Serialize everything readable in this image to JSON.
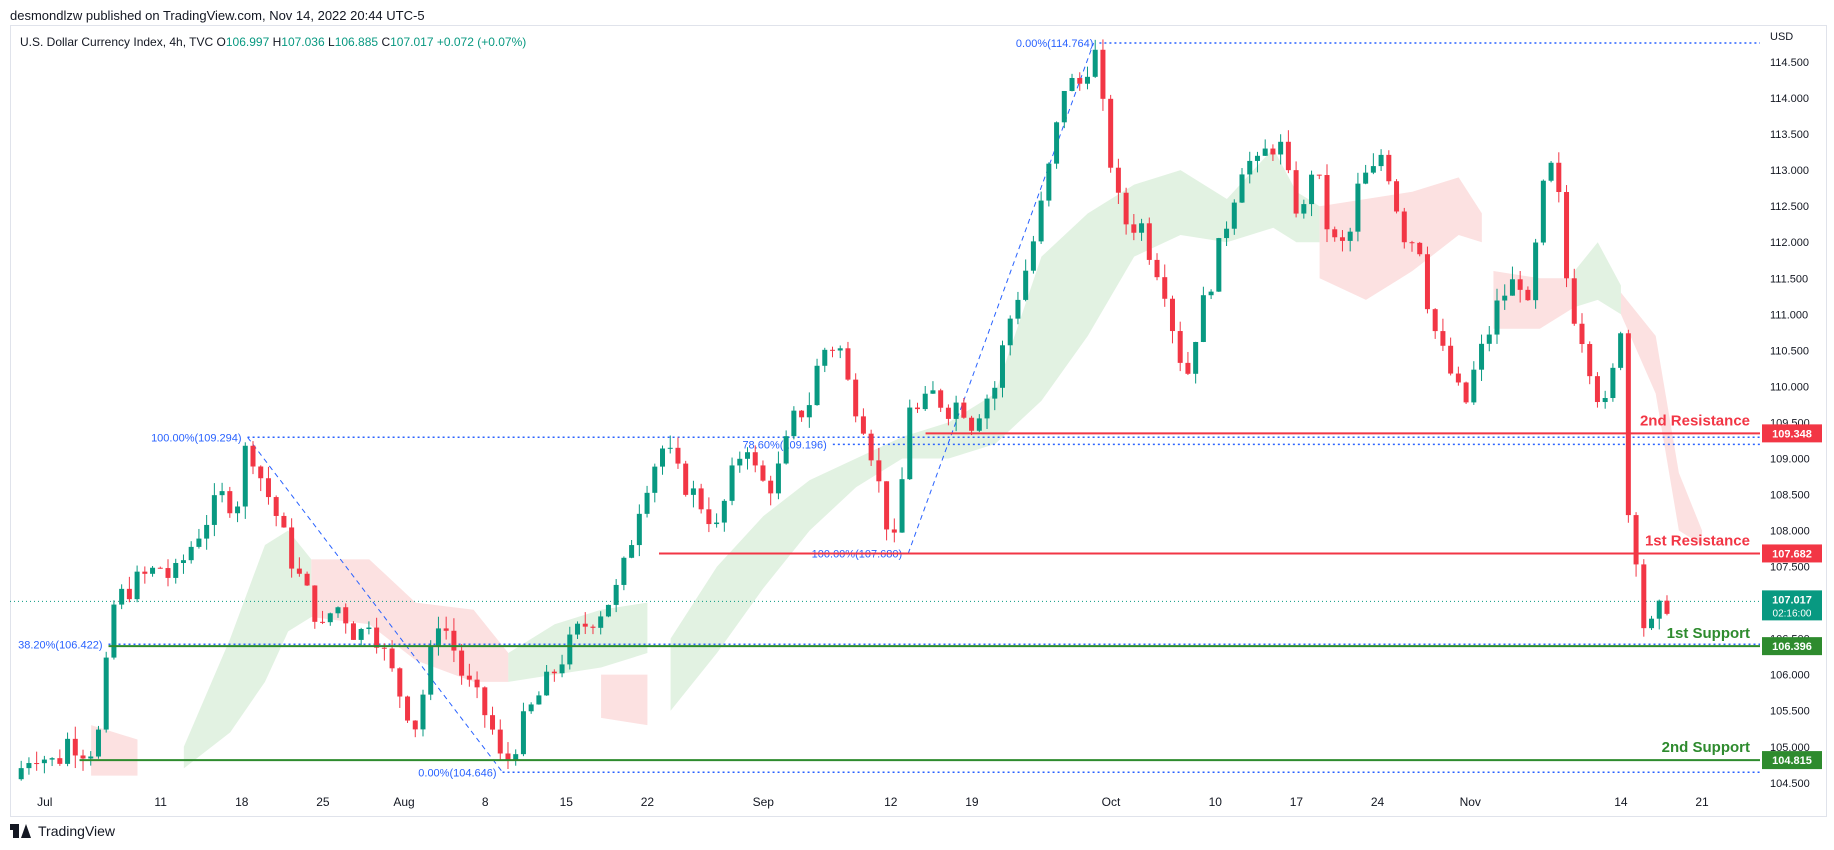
{
  "header": {
    "published": "desmondlzw published on TradingView.com, Nov 14, 2022 20:44 UTC-5"
  },
  "legend": {
    "symbol": "U.S. Dollar Currency Index, 4h, TVC",
    "o_label": "O",
    "o": "106.997",
    "h_label": "H",
    "h": "107.036",
    "l_label": "L",
    "l": "106.885",
    "c_label": "C",
    "c": "107.017",
    "change": "+0.072 (+0.07%)"
  },
  "footer": {
    "brand": "TradingView"
  },
  "colors": {
    "up": "#089981",
    "down": "#f23645",
    "support": "#2e8b2e",
    "resistance": "#f23645",
    "fib": "#2962ff",
    "cloud_up": "#d8eed8",
    "cloud_down": "#fbd7d7"
  },
  "chart_data": {
    "type": "candlestick",
    "currency": "USD",
    "ylim": [
      104.4,
      115.0
    ],
    "y_ticks": [
      "104.500",
      "105.000",
      "105.500",
      "106.000",
      "106.500",
      "107.000",
      "107.500",
      "108.000",
      "108.500",
      "109.000",
      "109.500",
      "110.000",
      "110.500",
      "111.000",
      "111.500",
      "112.000",
      "112.500",
      "113.000",
      "113.500",
      "114.000",
      "114.500"
    ],
    "x_tick_labels": [
      "Jul",
      "11",
      "18",
      "25",
      "Aug",
      "8",
      "15",
      "22",
      "Sep",
      "12",
      "19",
      "Oct",
      "10",
      "17",
      "24",
      "Nov",
      "14",
      "21"
    ],
    "x_tick_days": [
      182,
      192,
      199,
      206,
      213,
      220,
      227,
      234,
      244,
      255,
      262,
      274,
      283,
      290,
      297,
      305,
      318,
      325
    ],
    "x_range_days": [
      179,
      330
    ],
    "price_path": [
      [
        179.3,
        104.55
      ],
      [
        181,
        104.95
      ],
      [
        183,
        104.75
      ],
      [
        184,
        105.1
      ],
      [
        185.5,
        104.95
      ],
      [
        186.5,
        105.0
      ],
      [
        188,
        107.0
      ],
      [
        190,
        107.3
      ],
      [
        192,
        107.5
      ],
      [
        193,
        107.3
      ],
      [
        195,
        107.9
      ],
      [
        196.5,
        108.3
      ],
      [
        197.5,
        108.5
      ],
      [
        198.5,
        108.3
      ],
      [
        199.5,
        109.29
      ],
      [
        200.5,
        108.8
      ],
      [
        202,
        108.2
      ],
      [
        203.5,
        107.5
      ],
      [
        205,
        107.0
      ],
      [
        206,
        106.6
      ],
      [
        207,
        107.0
      ],
      [
        208,
        106.8
      ],
      [
        209,
        106.5
      ],
      [
        210,
        106.8
      ],
      [
        211,
        106.4
      ],
      [
        212,
        106.0
      ],
      [
        213,
        105.6
      ],
      [
        214,
        105.3
      ],
      [
        215,
        106.0
      ],
      [
        216,
        106.8
      ],
      [
        217,
        106.5
      ],
      [
        218,
        106.0
      ],
      [
        219.5,
        105.6
      ],
      [
        220.5,
        105.3
      ],
      [
        221.5,
        104.7
      ],
      [
        222.5,
        105.0
      ],
      [
        223.5,
        105.4
      ],
      [
        225,
        105.8
      ],
      [
        226.5,
        106.2
      ],
      [
        228,
        106.6
      ],
      [
        230,
        106.9
      ],
      [
        231.5,
        107.2
      ],
      [
        232.5,
        107.8
      ],
      [
        233.5,
        108.5
      ],
      [
        234.5,
        108.9
      ],
      [
        235.5,
        109.2
      ],
      [
        236.5,
        108.8
      ],
      [
        238,
        108.5
      ],
      [
        239,
        108.3
      ],
      [
        240,
        108.0
      ],
      [
        241,
        108.6
      ],
      [
        242.5,
        109.3
      ],
      [
        243.5,
        108.7
      ],
      [
        244.5,
        108.6
      ],
      [
        245.5,
        108.9
      ],
      [
        246.5,
        109.5
      ],
      [
        248,
        109.8
      ],
      [
        249,
        110.5
      ],
      [
        250.5,
        110.6
      ],
      [
        251.5,
        109.9
      ],
      [
        252.5,
        109.6
      ],
      [
        253.5,
        109.0
      ],
      [
        254.5,
        108.2
      ],
      [
        255.5,
        107.7
      ],
      [
        256.5,
        109.8
      ],
      [
        257.5,
        109.6
      ],
      [
        258.5,
        109.9
      ],
      [
        260,
        109.7
      ],
      [
        261,
        109.8
      ],
      [
        262,
        109.5
      ],
      [
        263,
        109.8
      ],
      [
        264,
        110.0
      ],
      [
        265,
        110.8
      ],
      [
        266,
        111.3
      ],
      [
        267,
        111.8
      ],
      [
        268,
        112.5
      ],
      [
        269,
        113.3
      ],
      [
        270,
        114.2
      ],
      [
        271.5,
        114.2
      ],
      [
        272.5,
        114.76
      ],
      [
        273.5,
        113.6
      ],
      [
        274.5,
        112.6
      ],
      [
        275.5,
        112.2
      ],
      [
        276.5,
        112.3
      ],
      [
        277.5,
        111.8
      ],
      [
        278.5,
        111.5
      ],
      [
        279.5,
        110.7
      ],
      [
        280.5,
        110.1
      ],
      [
        281.5,
        110.9
      ],
      [
        282.5,
        111.4
      ],
      [
        283.5,
        112.0
      ],
      [
        284.5,
        112.6
      ],
      [
        285.5,
        113.2
      ],
      [
        286.5,
        113.0
      ],
      [
        287.5,
        113.3
      ],
      [
        288.5,
        113.4
      ],
      [
        289.5,
        112.7
      ],
      [
        290.5,
        112.3
      ],
      [
        291.5,
        113.2
      ],
      [
        292.5,
        112.3
      ],
      [
        293.5,
        111.9
      ],
      [
        294.5,
        112.0
      ],
      [
        295.5,
        112.9
      ],
      [
        296.5,
        112.9
      ],
      [
        297.5,
        113.3
      ],
      [
        298.5,
        112.6
      ],
      [
        299.5,
        112.0
      ],
      [
        300.5,
        112.1
      ],
      [
        301.5,
        111.0
      ],
      [
        302.5,
        110.5
      ],
      [
        303.5,
        110.1
      ],
      [
        304.5,
        109.7
      ],
      [
        305.5,
        110.3
      ],
      [
        306.5,
        110.7
      ],
      [
        307.5,
        111.2
      ],
      [
        308.5,
        111.4
      ],
      [
        309.5,
        111.5
      ],
      [
        310,
        111.0
      ],
      [
        311,
        112.4
      ],
      [
        311.7,
        113.1
      ],
      [
        312.5,
        112.8
      ],
      [
        313.5,
        111.2
      ],
      [
        314.5,
        110.8
      ],
      [
        315.5,
        110.2
      ],
      [
        316.5,
        109.6
      ],
      [
        317.5,
        110.3
      ],
      [
        318,
        110.9
      ],
      [
        318.4,
        108.4
      ],
      [
        319.2,
        107.9
      ],
      [
        319.8,
        106.8
      ],
      [
        320.3,
        106.5
      ],
      [
        321,
        106.8
      ],
      [
        322,
        107.0
      ]
    ],
    "ichimoku_cloud": [
      {
        "trend": "down",
        "top": [
          [
            186,
            105.3
          ],
          [
            190,
            105.1
          ]
        ],
        "bottom": [
          [
            186,
            104.6
          ],
          [
            190,
            104.6
          ]
        ]
      },
      {
        "trend": "up",
        "top": [
          [
            194,
            105.0
          ],
          [
            198,
            106.5
          ],
          [
            201,
            107.8
          ],
          [
            203,
            108.0
          ],
          [
            205,
            107.6
          ]
        ],
        "bottom": [
          [
            194,
            104.7
          ],
          [
            198,
            105.2
          ],
          [
            201,
            105.9
          ],
          [
            203,
            106.6
          ],
          [
            205,
            106.8
          ]
        ]
      },
      {
        "trend": "down",
        "top": [
          [
            205,
            107.6
          ],
          [
            210,
            107.6
          ],
          [
            214,
            107.0
          ],
          [
            219,
            106.9
          ],
          [
            222,
            106.3
          ]
        ],
        "bottom": [
          [
            205,
            106.8
          ],
          [
            210,
            106.7
          ],
          [
            214,
            106.2
          ],
          [
            219,
            105.9
          ],
          [
            222,
            105.9
          ]
        ]
      },
      {
        "trend": "up",
        "top": [
          [
            222,
            106.3
          ],
          [
            226,
            106.7
          ],
          [
            230,
            106.9
          ],
          [
            234,
            107.0
          ]
        ],
        "bottom": [
          [
            222,
            105.9
          ],
          [
            226,
            106.0
          ],
          [
            230,
            106.1
          ],
          [
            234,
            106.3
          ]
        ]
      },
      {
        "trend": "down",
        "top": [
          [
            230,
            106.0
          ],
          [
            234,
            106.0
          ]
        ],
        "bottom": [
          [
            230,
            105.4
          ],
          [
            234,
            105.3
          ]
        ]
      },
      {
        "trend": "up",
        "top": [
          [
            236,
            106.5
          ],
          [
            240,
            107.5
          ],
          [
            244,
            108.2
          ],
          [
            248,
            108.7
          ],
          [
            252,
            109.0
          ],
          [
            256,
            109.3
          ],
          [
            260,
            109.5
          ],
          [
            264,
            109.9
          ],
          [
            268,
            111.8
          ],
          [
            272,
            112.4
          ],
          [
            276,
            112.8
          ],
          [
            280,
            113.0
          ],
          [
            284,
            112.6
          ],
          [
            288,
            113.3
          ],
          [
            290,
            112.7
          ],
          [
            292,
            112.5
          ]
        ],
        "bottom": [
          [
            236,
            105.5
          ],
          [
            240,
            106.3
          ],
          [
            244,
            107.2
          ],
          [
            248,
            108.0
          ],
          [
            252,
            108.6
          ],
          [
            256,
            109.0
          ],
          [
            260,
            109.0
          ],
          [
            264,
            109.2
          ],
          [
            268,
            109.8
          ],
          [
            272,
            110.7
          ],
          [
            276,
            111.8
          ],
          [
            280,
            112.1
          ],
          [
            284,
            112.0
          ],
          [
            288,
            112.2
          ],
          [
            290,
            112.0
          ],
          [
            292,
            112.0
          ]
        ]
      },
      {
        "trend": "down",
        "top": [
          [
            292,
            112.5
          ],
          [
            296,
            112.6
          ],
          [
            300,
            112.7
          ],
          [
            304,
            112.9
          ],
          [
            306,
            112.4
          ]
        ],
        "bottom": [
          [
            292,
            111.5
          ],
          [
            296,
            111.2
          ],
          [
            300,
            111.6
          ],
          [
            304,
            112.1
          ],
          [
            306,
            112.0
          ]
        ]
      },
      {
        "trend": "down",
        "top": [
          [
            307,
            111.6
          ],
          [
            311,
            111.5
          ],
          [
            314,
            111.5
          ]
        ],
        "bottom": [
          [
            307,
            110.8
          ],
          [
            311,
            110.8
          ],
          [
            314,
            111.1
          ]
        ]
      },
      {
        "trend": "up",
        "top": [
          [
            314,
            111.6
          ],
          [
            316,
            112.0
          ],
          [
            318,
            111.4
          ]
        ],
        "bottom": [
          [
            314,
            111.1
          ],
          [
            316,
            111.2
          ],
          [
            318,
            111.0
          ]
        ]
      },
      {
        "trend": "down",
        "top": [
          [
            318,
            111.3
          ],
          [
            321,
            110.7
          ],
          [
            323,
            108.8
          ],
          [
            325,
            108.0
          ]
        ],
        "bottom": [
          [
            318,
            111.0
          ],
          [
            321,
            109.9
          ],
          [
            323,
            108.0
          ],
          [
            325,
            107.8
          ]
        ]
      }
    ],
    "fib_lines": [
      {
        "label": "0.00%(114.764)",
        "value": 114.764,
        "x_start": 273
      },
      {
        "label": "100.00%(109.294)",
        "value": 109.294,
        "x_start": 199.5
      },
      {
        "label": "78.60%(109.196)",
        "value": 109.196,
        "x_start": 250
      },
      {
        "label": "100.00%(107.680)",
        "value": 107.68,
        "x_start": 256.5
      },
      {
        "label": "38.20%(106.422)",
        "value": 106.422,
        "x_start": 187.5
      },
      {
        "label": "0.00%(104.646)",
        "value": 104.646,
        "x_start": 221.5
      }
    ],
    "fib_diagonals": [
      {
        "from": [
          199.5,
          109.294
        ],
        "to": [
          221.5,
          104.646
        ]
      },
      {
        "from": [
          256.5,
          107.68
        ],
        "to": [
          272.5,
          114.764
        ]
      }
    ],
    "levels": [
      {
        "name": "2nd Resistance",
        "value": 109.348,
        "label": "109.348",
        "kind": "resistance",
        "x_start": 258
      },
      {
        "name": "1st Resistance",
        "value": 107.682,
        "label": "107.682",
        "kind": "resistance",
        "x_start": 235
      },
      {
        "name": "1st Support",
        "value": 106.396,
        "label": "106.396",
        "kind": "support",
        "x_start": 187.5
      },
      {
        "name": "2nd Support",
        "value": 104.815,
        "label": "104.815",
        "kind": "support",
        "x_start": 185
      }
    ],
    "last_price": {
      "value": 107.017,
      "label": "107.017",
      "countdown": "02:16:00"
    }
  }
}
